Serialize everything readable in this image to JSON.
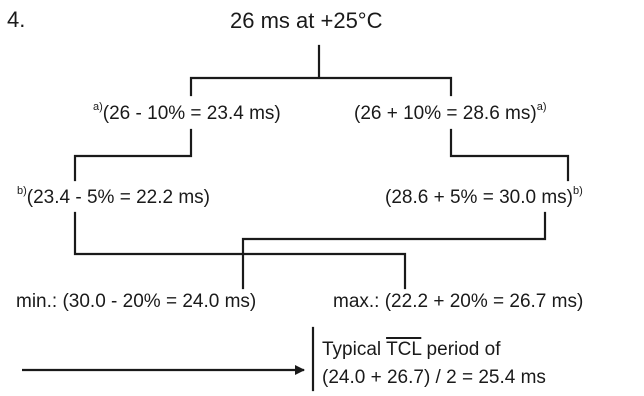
{
  "step_number": "4.",
  "top": {
    "text": "26 ms at +25°C"
  },
  "level1": {
    "left": {
      "mark": "a)",
      "text": "(26 - 10% = 23.4 ms)"
    },
    "right": {
      "mark": "a)",
      "text": "(26 + 10% = 28.6 ms)"
    }
  },
  "level2": {
    "left": {
      "mark": "b)",
      "text": "(23.4 - 5% = 22.2 ms)"
    },
    "right": {
      "mark": "b)",
      "text": "(28.6 + 5% = 30.0 ms)"
    }
  },
  "level3": {
    "min": {
      "text": "min.: (30.0 - 20% = 24.0 ms)"
    },
    "max": {
      "text": "max.: (22.2 + 20% = 26.7 ms)"
    }
  },
  "result": {
    "prefix": "Typical ",
    "signal": "TCL",
    "suffix": " period of",
    "equation": "(24.0 + 26.7) / 2 = 25.4 ms"
  },
  "line_color": "#1a1a1a"
}
